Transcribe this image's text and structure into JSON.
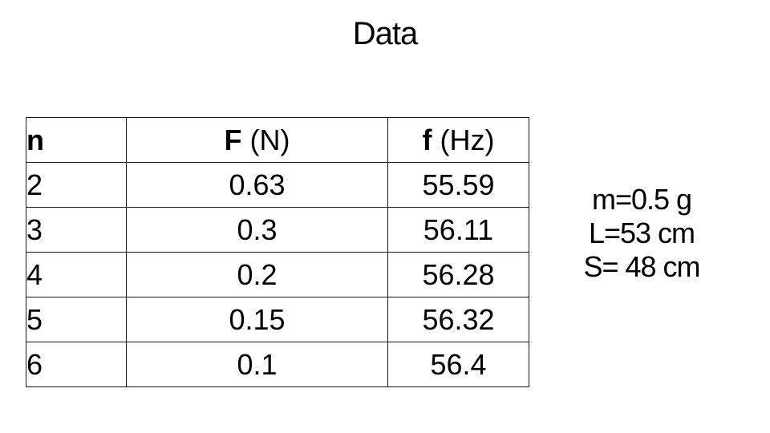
{
  "title": "Data",
  "table": {
    "headers": [
      {
        "symbol": "n",
        "unit": ""
      },
      {
        "symbol": "F",
        "unit": " (N)"
      },
      {
        "symbol": "f",
        "unit": " (Hz)"
      }
    ],
    "rows": [
      [
        "2",
        "0.63",
        "55.59"
      ],
      [
        "3",
        "0.3",
        "56.11"
      ],
      [
        "4",
        "0.2",
        "56.28"
      ],
      [
        "5",
        "0.15",
        "56.32"
      ],
      [
        "6",
        "0.1",
        "56.4"
      ]
    ]
  },
  "parameters": [
    "m=0.5 g",
    "L=53 cm",
    "S= 48 cm"
  ]
}
